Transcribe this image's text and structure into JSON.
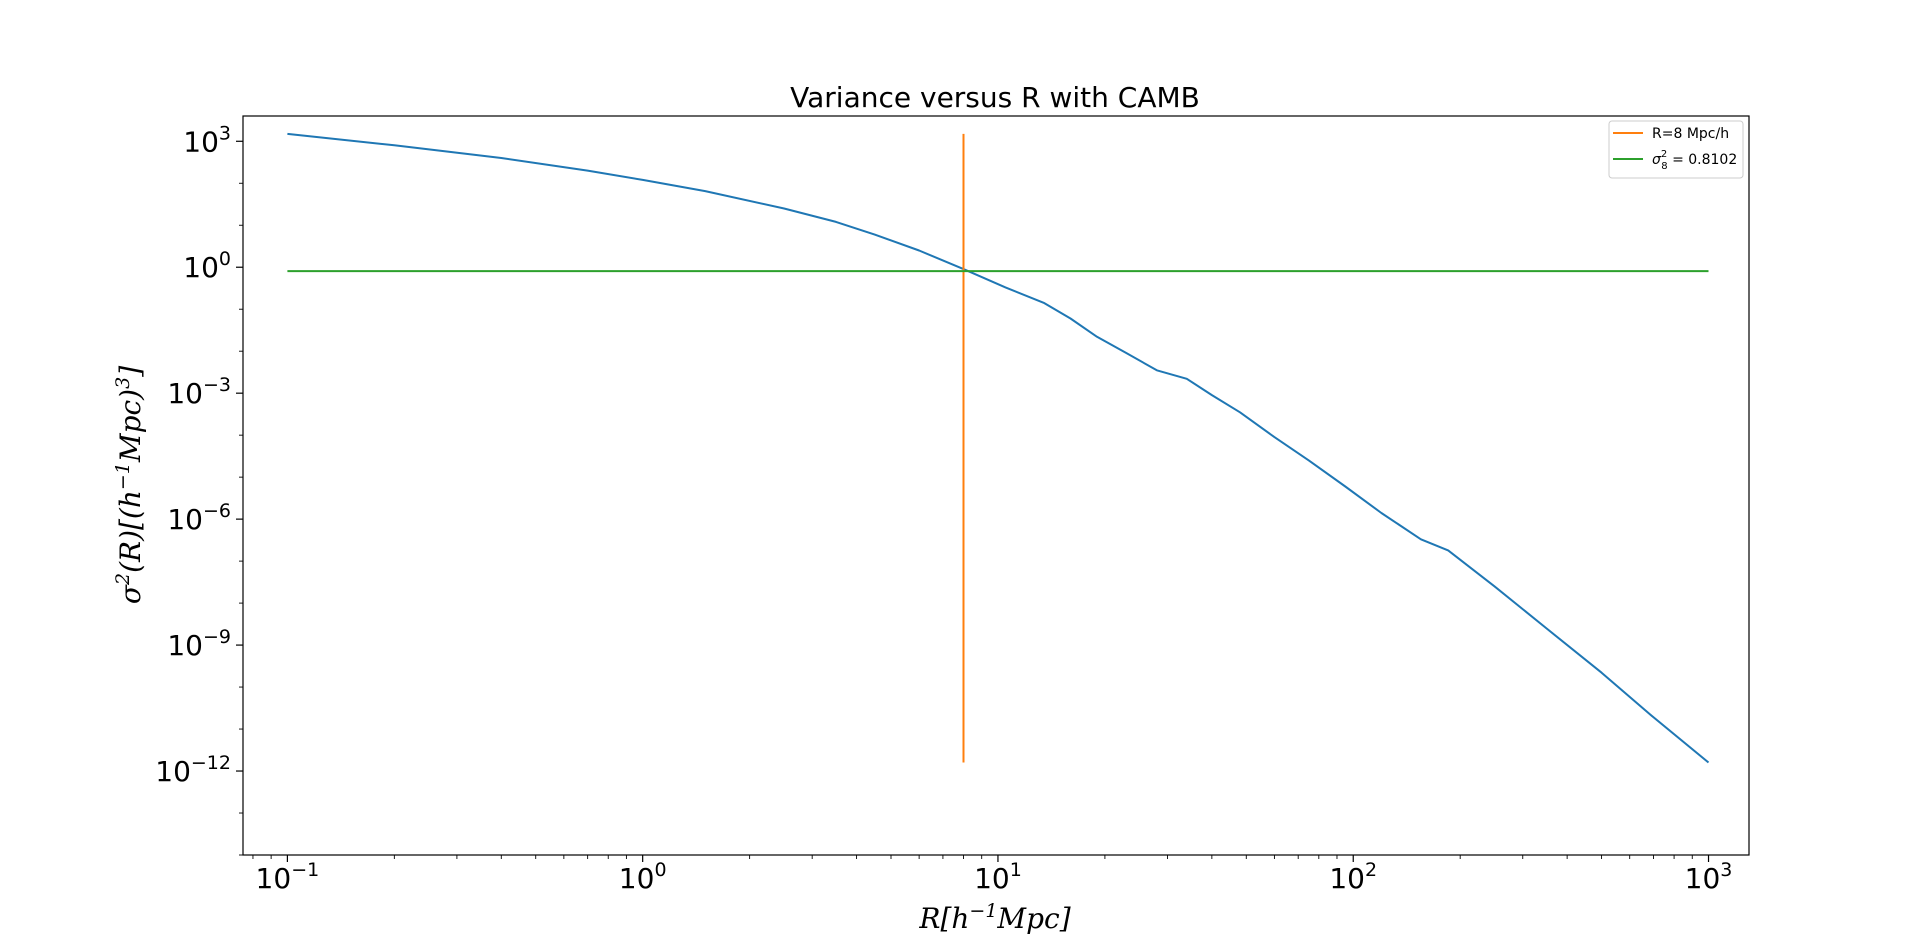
{
  "chart_data": {
    "type": "line",
    "title": "Variance versus R with CAMB",
    "xlabel": "R[h^{-1}Mpc]",
    "ylabel": "σ^2(R)[(h^{-1}Mpc)^3]",
    "xscale": "log",
    "yscale": "log",
    "xlim": [
      0.075,
      1300
    ],
    "ylim": [
      1e-14,
      4000
    ],
    "x_ticks": [
      {
        "base": "10",
        "exp": "−1",
        "value": 0.1
      },
      {
        "base": "10",
        "exp": "0",
        "value": 1
      },
      {
        "base": "10",
        "exp": "1",
        "value": 10
      },
      {
        "base": "10",
        "exp": "2",
        "value": 100
      },
      {
        "base": "10",
        "exp": "3",
        "value": 1000
      }
    ],
    "y_ticks": [
      {
        "base": "10",
        "exp": "3",
        "value": 1000.0
      },
      {
        "base": "10",
        "exp": "0",
        "value": 1
      },
      {
        "base": "10",
        "exp": "−3",
        "value": 0.001
      },
      {
        "base": "10",
        "exp": "−6",
        "value": 1e-06
      },
      {
        "base": "10",
        "exp": "−9",
        "value": 1e-09
      },
      {
        "base": "10",
        "exp": "−12",
        "value": 1e-12
      }
    ],
    "grid": false,
    "legend_position": "top-right",
    "series": [
      {
        "name": "",
        "color": "#1f77b4",
        "x": [
          0.1,
          0.2,
          0.4,
          0.7,
          1.0,
          1.5,
          2.5,
          3.5,
          4.5,
          6.0,
          8.0,
          10.5,
          13.5,
          16,
          19,
          23,
          28,
          34,
          40,
          48,
          60,
          75,
          95,
          120,
          155,
          185,
          250,
          350,
          500,
          700,
          1000
        ],
        "y": [
          1500,
          800,
          400,
          200,
          120,
          65,
          25,
          12,
          6,
          2.5,
          0.9,
          0.33,
          0.14,
          0.06,
          0.022,
          0.009,
          0.0035,
          0.0022,
          0.0009,
          0.00035,
          9e-05,
          2.5e-05,
          6e-06,
          1.4e-06,
          3.3e-07,
          1.8e-07,
          2.5e-08,
          2.5e-09,
          2.2e-10,
          1.9e-11,
          1.6e-12
        ]
      },
      {
        "name": "R=8 Mpc/h",
        "color": "#ff7f0e",
        "x": [
          8,
          8
        ],
        "y": [
          1500,
          1.6e-12
        ]
      },
      {
        "name_prefix": "σ",
        "name_sub": "8",
        "name_sup": "2",
        "name_suffix": " = 0.8102",
        "color": "#2ca02c",
        "x": [
          0.1,
          1000
        ],
        "y": [
          0.8102,
          0.8102
        ]
      }
    ]
  }
}
